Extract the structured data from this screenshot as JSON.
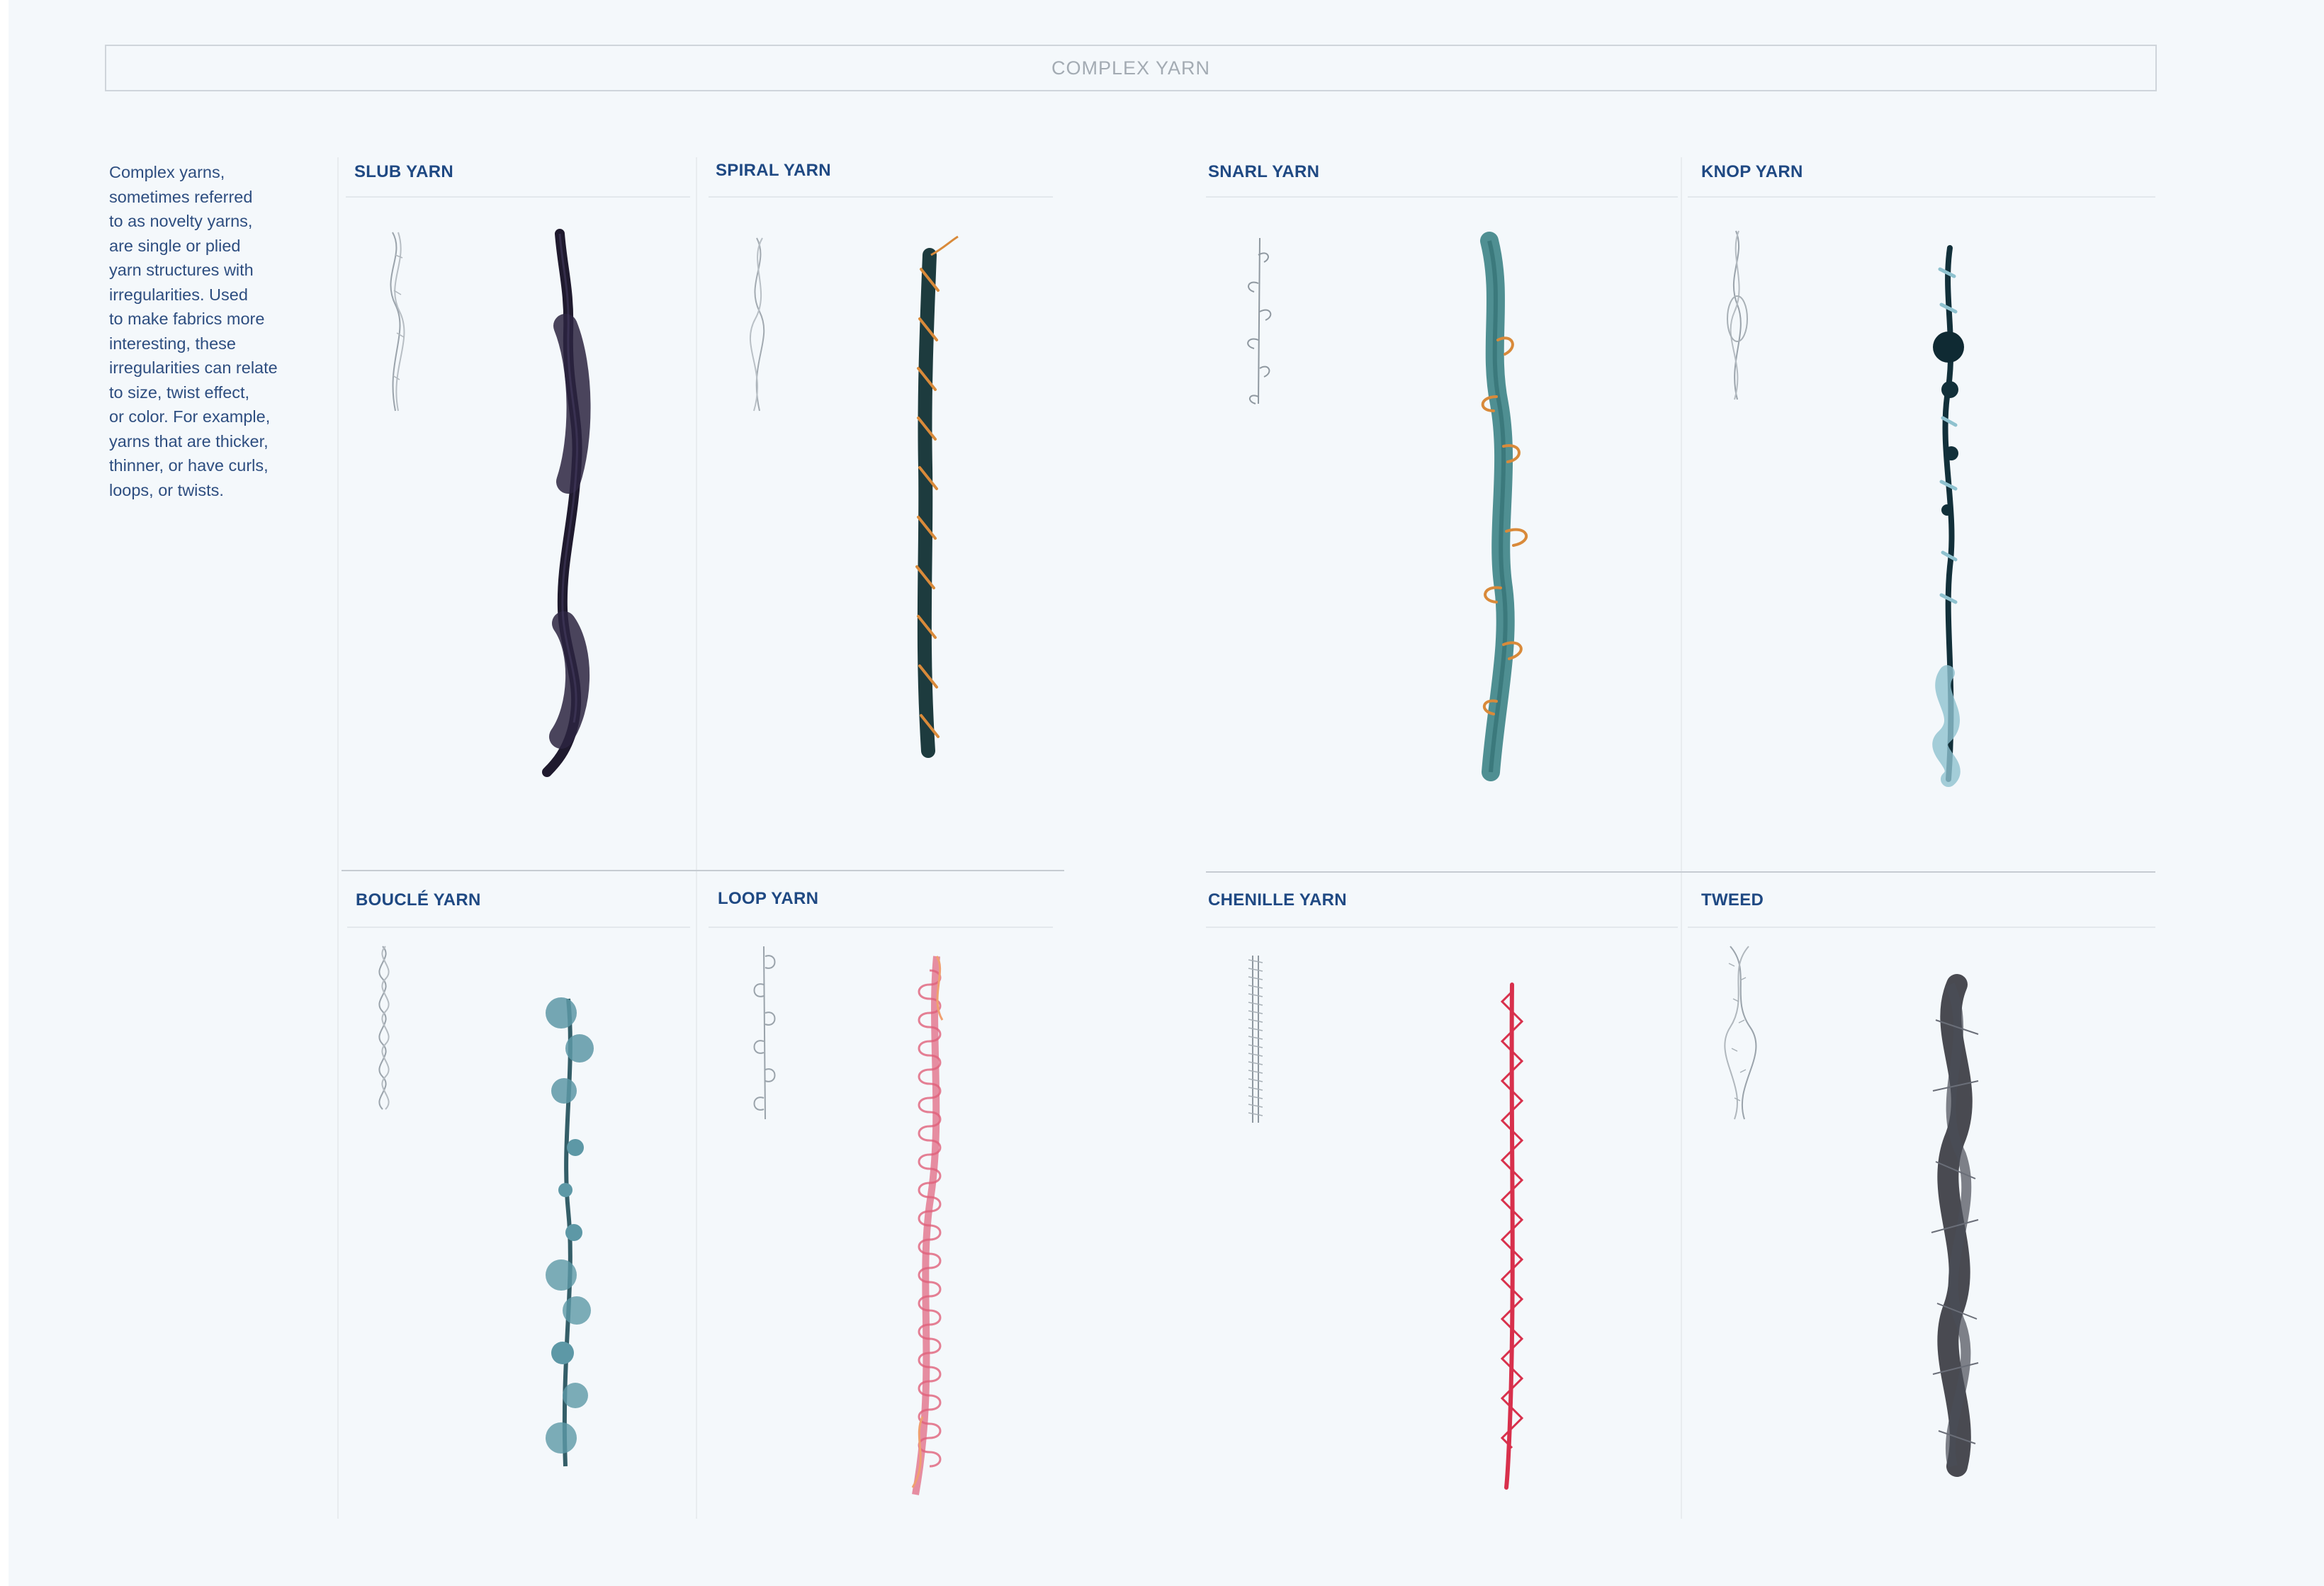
{
  "page": {
    "title": "COMPLEX YARN",
    "description": "Complex yarns,\nsometimes referred\nto as novelty yarns,\nare single or plied\nyarn structures with\nirregularities. Used\nto make fabrics more\ninteresting, these\nirregularities can relate\nto size, twist effect,\nor color. For example,\nyarns that are thicker,\nthinner, or have curls,\nloops, or twists."
  },
  "yarns": [
    {
      "name": "SLUB YARN",
      "icon": "slub-yarn-icon",
      "color": "#1f1a2e"
    },
    {
      "name": "SPIRAL YARN",
      "icon": "spiral-yarn-icon",
      "color": "#1d3b3e",
      "accent": "#d98a3a"
    },
    {
      "name": "SNARL YARN",
      "icon": "snarl-yarn-icon",
      "color": "#4f8f92",
      "accent": "#d98a3a"
    },
    {
      "name": "KNOP YARN",
      "icon": "knop-yarn-icon",
      "color": "#12303a",
      "accent": "#8fc2cf"
    },
    {
      "name": "BOUCLÉ YARN",
      "icon": "boucle-yarn-icon",
      "color": "#5d98a6"
    },
    {
      "name": "LOOP YARN",
      "icon": "loop-yarn-icon",
      "color": "#e0607a",
      "accent": "#f0a070"
    },
    {
      "name": "CHENILLE YARN",
      "icon": "chenille-yarn-icon",
      "color": "#d8304c"
    },
    {
      "name": "TWEED",
      "icon": "tweed-yarn-icon",
      "color": "#2a2c33"
    }
  ]
}
